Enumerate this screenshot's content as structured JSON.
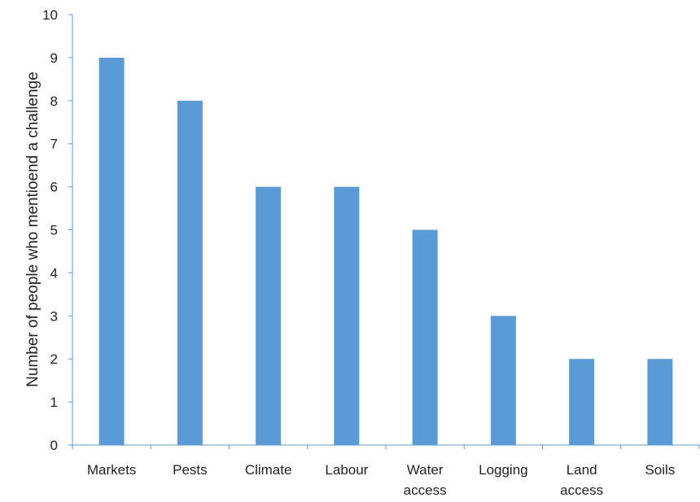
{
  "chart_data": {
    "type": "bar",
    "title": "",
    "xlabel": "",
    "ylabel": "Number of people who mentioend a challenge",
    "ylim": [
      0,
      10
    ],
    "yticks": [
      0,
      1,
      2,
      3,
      4,
      5,
      6,
      7,
      8,
      9,
      10
    ],
    "grid": false,
    "legend": "none",
    "bar_color": "#5b9bd5",
    "axis_color": "#5b9bd5",
    "categories": [
      "Markets",
      "Pests",
      "Climate",
      "Labour",
      "Water access",
      "Logging",
      "Land access",
      "Soils"
    ],
    "category_lines": [
      [
        "Markets"
      ],
      [
        "Pests"
      ],
      [
        "Climate"
      ],
      [
        "Labour"
      ],
      [
        "Water",
        "access"
      ],
      [
        "Logging"
      ],
      [
        "Land",
        "access"
      ],
      [
        "Soils"
      ]
    ],
    "values": [
      9,
      8,
      6,
      6,
      5,
      3,
      2,
      2
    ]
  }
}
